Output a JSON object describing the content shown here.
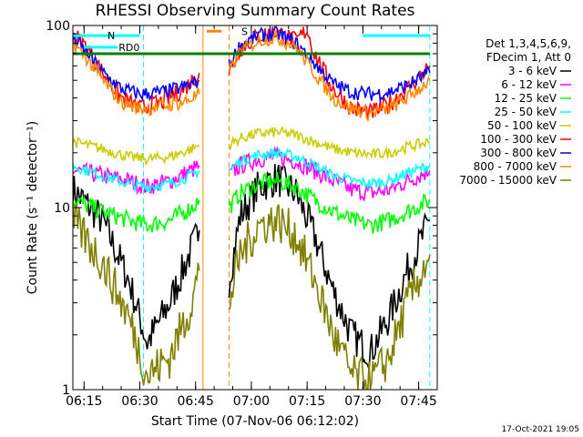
{
  "chart_data": {
    "type": "line",
    "title": "RHESSI Observing Summary Count Rates",
    "xlabel": "Start Time (07-Nov-06 06:12:02)",
    "ylabel": "Count Rate (s⁻¹ detector⁻¹)",
    "y_scale": "log",
    "ylim": [
      1,
      100
    ],
    "xlim": [
      "06:12",
      "07:50"
    ],
    "x_ticks": [
      "06:15",
      "06:30",
      "06:45",
      "07:00",
      "07:15",
      "07:30",
      "07:45"
    ],
    "y_ticks": [
      "1",
      "10",
      "100"
    ],
    "legend_header": [
      "Det 1,3,4,5,6,9,",
      "FDecim 1, Att 0"
    ],
    "legend_position": "right",
    "series": [
      {
        "name": "3 - 6 keV",
        "color": "#000000",
        "segments": [
          {
            "x": [
              "06:12",
              "06:20",
              "06:27",
              "06:32",
              "06:38",
              "06:44",
              "06:46"
            ],
            "y": [
              12.5,
              8.5,
              4.0,
              1.8,
              3.0,
              6.0,
              7.5
            ]
          },
          {
            "x": [
              "06:54",
              "06:57",
              "07:02",
              "07:07",
              "07:12",
              "07:17",
              "07:22",
              "07:27",
              "07:32",
              "07:37",
              "07:42",
              "07:48"
            ],
            "y": [
              4.0,
              9.0,
              13.0,
              14.5,
              12.0,
              7.0,
              3.5,
              2.0,
              1.6,
              2.5,
              4.5,
              8.5
            ]
          }
        ]
      },
      {
        "name": "6 - 12 keV",
        "color": "#ff00ff",
        "segments": [
          {
            "x": [
              "06:12",
              "06:20",
              "06:27",
              "06:32",
              "06:38",
              "06:44",
              "06:46"
            ],
            "y": [
              16,
              15,
              14,
              13,
              14,
              16,
              17
            ]
          },
          {
            "x": [
              "06:54",
              "06:57",
              "07:02",
              "07:07",
              "07:12",
              "07:17",
              "07:22",
              "07:27",
              "07:32",
              "07:37",
              "07:42",
              "07:48"
            ],
            "y": [
              15,
              17,
              18.5,
              19,
              18,
              16,
              14,
              12.5,
              12,
              12.5,
              14,
              16
            ]
          }
        ]
      },
      {
        "name": "12 - 25 keV",
        "color": "#00ff00",
        "segments": [
          {
            "x": [
              "06:12",
              "06:20",
              "06:27",
              "06:32",
              "06:38",
              "06:44",
              "06:46"
            ],
            "y": [
              11,
              9.5,
              8.5,
              8.0,
              8.5,
              10,
              11
            ]
          },
          {
            "x": [
              "06:54",
              "06:57",
              "07:02",
              "07:07",
              "07:12",
              "07:17",
              "07:22",
              "07:27",
              "07:32",
              "07:37",
              "07:42",
              "07:48"
            ],
            "y": [
              10,
              12,
              13.5,
              14,
              13,
              11,
              9.5,
              8.5,
              8.0,
              8.5,
              9.5,
              11
            ]
          }
        ]
      },
      {
        "name": "25 - 50 keV",
        "color": "#00ffff",
        "segments": [
          {
            "x": [
              "06:12",
              "06:20",
              "06:27",
              "06:32",
              "06:38",
              "06:44",
              "06:46"
            ],
            "y": [
              17,
              15,
              13.5,
              13,
              13.5,
              15,
              16
            ]
          },
          {
            "x": [
              "06:54",
              "06:57",
              "07:02",
              "07:07",
              "07:12",
              "07:17",
              "07:22",
              "07:27",
              "07:32",
              "07:37",
              "07:42",
              "07:48"
            ],
            "y": [
              16,
              18,
              19.5,
              20,
              19,
              17,
              15,
              14,
              13.5,
              14,
              15.5,
              17
            ]
          }
        ]
      },
      {
        "name": "50 - 100 keV",
        "color": "#cccc00",
        "segments": [
          {
            "x": [
              "06:12",
              "06:20",
              "06:27",
              "06:32",
              "06:38",
              "06:44",
              "06:46"
            ],
            "y": [
              23,
              21,
              19,
              18.5,
              19,
              21,
              22
            ]
          },
          {
            "x": [
              "06:54",
              "06:57",
              "07:02",
              "07:07",
              "07:12",
              "07:17",
              "07:22",
              "07:27",
              "07:32",
              "07:37",
              "07:42",
              "07:48"
            ],
            "y": [
              22,
              24,
              25.5,
              26,
              25,
              23,
              21,
              20,
              19.5,
              20,
              21.5,
              23
            ]
          }
        ]
      },
      {
        "name": "100 - 300 keV",
        "color": "#ff0000",
        "segments": [
          {
            "x": [
              "06:12",
              "06:16",
              "06:20",
              "06:25",
              "06:30",
              "06:36",
              "06:42",
              "06:46"
            ],
            "y": [
              90,
              75,
              55,
              40,
              35,
              38,
              45,
              55
            ]
          },
          {
            "x": [
              "06:54",
              "06:57",
              "07:02",
              "07:07",
              "07:12",
              "07:15",
              "07:17",
              "07:22",
              "07:27",
              "07:32",
              "07:37",
              "07:42",
              "07:48"
            ],
            "y": [
              55,
              75,
              88,
              92,
              82,
              95,
              70,
              45,
              35,
              33,
              37,
              45,
              60
            ]
          }
        ]
      },
      {
        "name": "300 - 800 keV",
        "color": "#0000ff",
        "segments": [
          {
            "x": [
              "06:12",
              "06:16",
              "06:20",
              "06:25",
              "06:30",
              "06:36",
              "06:42",
              "06:46"
            ],
            "y": [
              85,
              70,
              55,
              45,
              42,
              43,
              46,
              50
            ]
          },
          {
            "x": [
              "06:54",
              "06:57",
              "07:02",
              "07:07",
              "07:12",
              "07:17",
              "07:22",
              "07:27",
              "07:32",
              "07:37",
              "07:42",
              "07:48"
            ],
            "y": [
              60,
              78,
              88,
              90,
              80,
              62,
              48,
              43,
              42,
              43,
              47,
              55
            ]
          }
        ]
      },
      {
        "name": "800 - 7000 keV",
        "color": "#ff8800",
        "segments": [
          {
            "x": [
              "06:12",
              "06:16",
              "06:20",
              "06:25",
              "06:30",
              "06:36",
              "06:42",
              "06:46"
            ],
            "y": [
              80,
              65,
              50,
              38,
              35,
              36,
              38,
              42
            ]
          },
          {
            "x": [
              "06:54",
              "06:57",
              "07:02",
              "07:07",
              "07:12",
              "07:17",
              "07:22",
              "07:27",
              "07:32",
              "07:37",
              "07:42",
              "07:48"
            ],
            "y": [
              55,
              72,
              83,
              86,
              76,
              55,
              40,
              35,
              33,
              35,
              40,
              50
            ]
          }
        ]
      },
      {
        "name": "7000 - 15000 keV",
        "color": "#808000",
        "segments": [
          {
            "x": [
              "06:12",
              "06:20",
              "06:27",
              "06:32",
              "06:38",
              "06:44",
              "06:46"
            ],
            "y": [
              8.5,
              5.0,
              2.5,
              1.2,
              1.5,
              3.0,
              4.5
            ]
          },
          {
            "x": [
              "06:54",
              "06:57",
              "07:02",
              "07:07",
              "07:12",
              "07:17",
              "07:22",
              "07:27",
              "07:32",
              "07:37",
              "07:42",
              "07:48"
            ],
            "y": [
              3.0,
              5.5,
              8.0,
              8.5,
              7.0,
              4.0,
              2.0,
              1.2,
              1.1,
              1.5,
              3.0,
              5.5
            ]
          }
        ]
      }
    ],
    "flag_bars": [
      {
        "color": "#00ffff",
        "label": "N",
        "x": [
          "06:12",
          "06:30"
        ],
        "y": 88
      },
      {
        "color": "#00ffff",
        "label": "",
        "x": [
          "07:30",
          "07:48"
        ],
        "y": 88
      },
      {
        "color": "#00ffff",
        "label": "RD0",
        "x": [
          "06:15",
          "06:24"
        ],
        "y": 76
      },
      {
        "color": "#ff8800",
        "label": "S",
        "x": [
          "06:48",
          "06:52"
        ],
        "y": 93
      },
      {
        "color": "#008000",
        "label": "",
        "x": [
          "06:12",
          "07:48"
        ],
        "y": 70
      }
    ],
    "vertical_markers": [
      {
        "x": "06:12",
        "color": "#00ffff",
        "style": "dashed"
      },
      {
        "x": "06:31",
        "color": "#00ffff",
        "style": "dashed"
      },
      {
        "x": "06:47",
        "color": "#ff8800",
        "style": "solid"
      },
      {
        "x": "06:54",
        "color": "#ff8800",
        "style": "dashed"
      },
      {
        "x": "07:48",
        "color": "#00ffff",
        "style": "dashed"
      }
    ]
  },
  "footer": {
    "timestamp": "17-Oct-2021 19:05"
  }
}
